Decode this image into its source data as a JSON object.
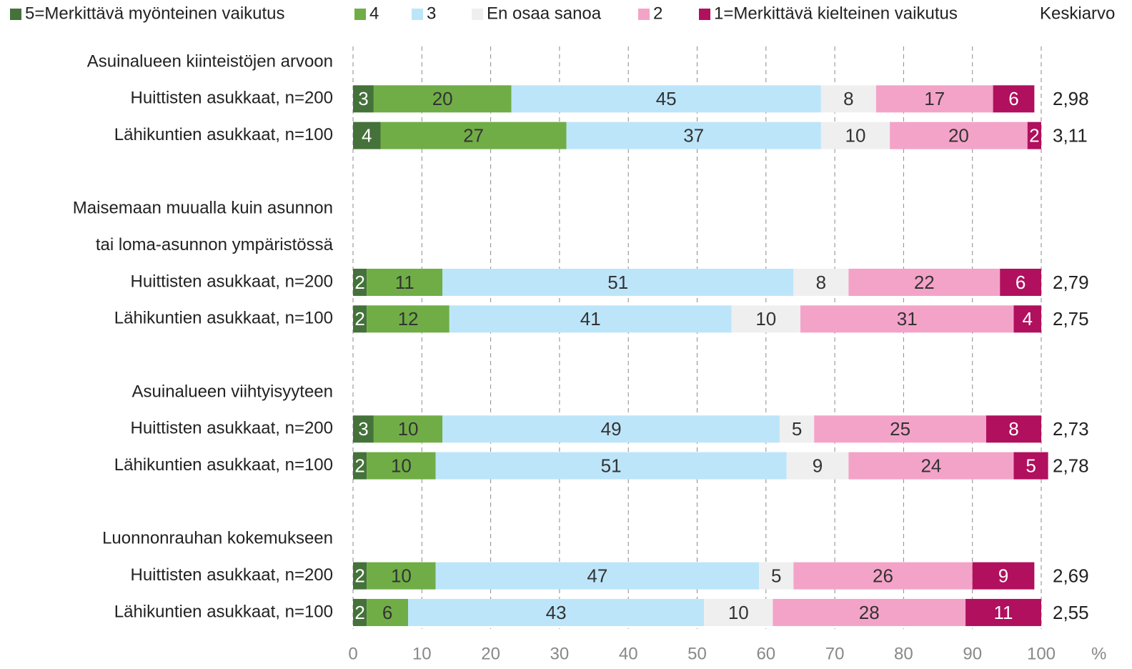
{
  "chart_data": {
    "type": "stacked-bar-horizontal",
    "categories": [
      "Asuinalueen kiinteistöjen arvoon",
      "Huittisten asukkaat, n=200",
      "Lähikuntien asukkaat, n=100",
      null,
      "Maisemaan muualla kuin asunnon",
      "tai loma-asunnon ympäristössä",
      "Huittisten asukkaat, n=200",
      "Lähikuntien asukkaat, n=100",
      null,
      "Asuinalueen viihtyisyyteen",
      "Huittisten asukkaat, n=200",
      "Lähikuntien asukkaat, n=100",
      null,
      "Luonnonrauhan kokemukseen",
      "Huittisten asukkaat, n=200",
      "Lähikuntien asukkaat, n=100"
    ],
    "series": [
      {
        "name": "5=Merkittävä myönteinen vaikutus",
        "color": "#44723a",
        "values": [
          null,
          3,
          4,
          null,
          null,
          null,
          2,
          2,
          null,
          null,
          3,
          2,
          null,
          null,
          2,
          2
        ]
      },
      {
        "name": "4",
        "color": "#70ad47",
        "values": [
          null,
          20,
          27,
          null,
          null,
          null,
          11,
          12,
          null,
          null,
          10,
          10,
          null,
          null,
          10,
          6
        ]
      },
      {
        "name": "3",
        "color": "#bde5fa",
        "values": [
          null,
          45,
          37,
          null,
          null,
          null,
          51,
          41,
          null,
          null,
          49,
          51,
          null,
          null,
          47,
          43
        ]
      },
      {
        "name": "En osaa sanoa",
        "color": "#efefef",
        "values": [
          null,
          8,
          10,
          null,
          null,
          null,
          8,
          10,
          null,
          null,
          5,
          9,
          null,
          null,
          5,
          10
        ]
      },
      {
        "name": "2",
        "color": "#f4a3c8",
        "values": [
          null,
          17,
          20,
          null,
          null,
          null,
          22,
          31,
          null,
          null,
          25,
          24,
          null,
          null,
          26,
          28
        ]
      },
      {
        "name": "1=Merkittävä kielteinen vaikutus",
        "color": "#b0105e",
        "values": [
          null,
          6,
          2,
          null,
          null,
          null,
          6,
          4,
          null,
          null,
          8,
          5,
          null,
          null,
          9,
          11
        ]
      }
    ],
    "mean": {
      "name": "Keskiarvo",
      "values": [
        null,
        2.98,
        3.11,
        null,
        null,
        null,
        2.79,
        2.75,
        null,
        null,
        2.73,
        2.78,
        null,
        null,
        2.69,
        2.55
      ],
      "value_labels": [
        null,
        "2,98",
        "3,11",
        null,
        null,
        null,
        "2,79",
        "2,75",
        null,
        null,
        "2,73",
        "2,78",
        null,
        null,
        "2,69",
        "2,55"
      ]
    },
    "xlim": [
      0,
      100
    ],
    "xticks": [
      0,
      10,
      20,
      30,
      40,
      50,
      60,
      70,
      80,
      90,
      100
    ],
    "x_unit": "%",
    "grid": true
  }
}
